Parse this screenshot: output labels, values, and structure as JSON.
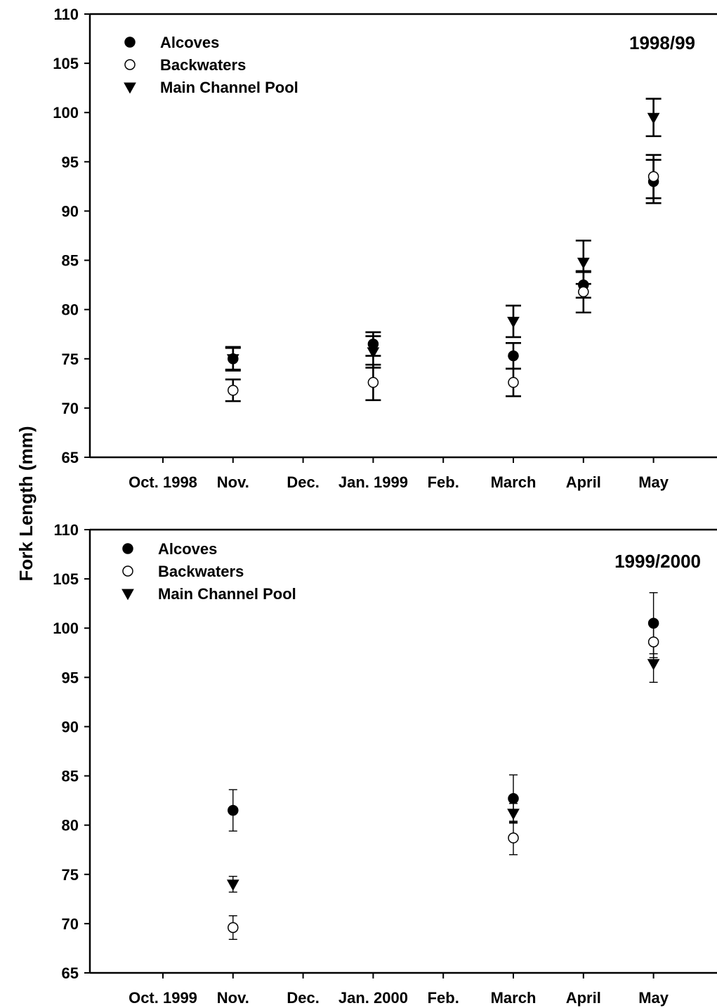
{
  "ylabel": "Fork Length (mm)",
  "chart_data": [
    {
      "type": "scatter",
      "panel_label": "1998/99",
      "ylabel": "Fork Length (mm)",
      "ylim": [
        65,
        110
      ],
      "yticks": [
        65,
        70,
        75,
        80,
        85,
        90,
        95,
        100,
        105,
        110
      ],
      "categories": [
        "Oct. 1998",
        "Nov.",
        "Dec.",
        "Jan. 1999",
        "Feb.",
        "March",
        "April",
        "May"
      ],
      "grid": false,
      "legend_position": "top-left",
      "series": [
        {
          "name": "Alcoves",
          "marker": "filled-circle",
          "x": [
            "Nov.",
            "Jan. 1999",
            "March",
            "April",
            "May"
          ],
          "y": [
            75.0,
            76.5,
            75.3,
            82.5,
            93.0
          ],
          "err": [
            1.2,
            1.2,
            1.3,
            1.3,
            2.2
          ]
        },
        {
          "name": "Backwaters",
          "marker": "open-circle",
          "x": [
            "Nov.",
            "Jan. 1999",
            "March",
            "April",
            "May"
          ],
          "y": [
            71.8,
            72.6,
            72.6,
            81.8,
            93.5
          ],
          "err": [
            1.1,
            1.8,
            1.4,
            2.1,
            2.2
          ]
        },
        {
          "name": "Main Channel Pool",
          "marker": "down-triangle",
          "x": [
            "Nov.",
            "Jan. 1999",
            "March",
            "April",
            "May"
          ],
          "y": [
            75.0,
            75.7,
            78.8,
            84.8,
            99.5
          ],
          "err": [
            1.1,
            1.6,
            1.6,
            2.2,
            1.9
          ]
        }
      ]
    },
    {
      "type": "scatter",
      "panel_label": "1999/2000",
      "ylabel": "Fork Length (mm)",
      "ylim": [
        65,
        110
      ],
      "yticks": [
        65,
        70,
        75,
        80,
        85,
        90,
        95,
        100,
        105,
        110
      ],
      "categories": [
        "Oct. 1999",
        "Nov.",
        "Dec.",
        "Jan. 2000",
        "Feb.",
        "March",
        "April",
        "May"
      ],
      "grid": false,
      "legend_position": "top-left",
      "series": [
        {
          "name": "Alcoves",
          "marker": "filled-circle",
          "x": [
            "Nov.",
            "March",
            "May"
          ],
          "y": [
            81.5,
            82.7,
            100.5
          ],
          "err": [
            2.1,
            2.4,
            3.1
          ]
        },
        {
          "name": "Backwaters",
          "marker": "open-circle",
          "x": [
            "Nov.",
            "March",
            "May"
          ],
          "y": [
            69.6,
            78.7,
            98.6
          ],
          "err": [
            1.2,
            1.7,
            1.6
          ]
        },
        {
          "name": "Main Channel Pool",
          "marker": "down-triangle",
          "x": [
            "Nov.",
            "March",
            "May"
          ],
          "y": [
            74.0,
            81.2,
            96.4
          ],
          "err": [
            0.8,
            1.0,
            1.9
          ]
        }
      ]
    }
  ]
}
